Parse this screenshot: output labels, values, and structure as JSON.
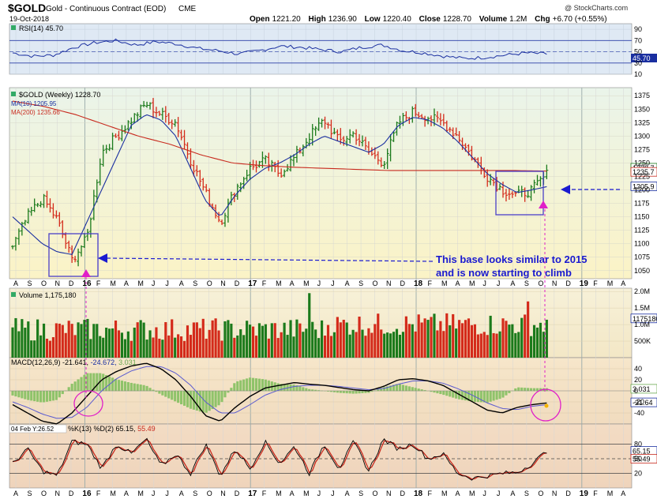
{
  "header": {
    "symbol": "$GOLD",
    "name": "Gold - Continuous Contract (EOD)",
    "exchange": "CME",
    "date": "19-Oct-2018",
    "watermark": "@ StockCharts.com",
    "open_label": "Open",
    "open": "1221.20",
    "high_label": "High",
    "high": "1236.90",
    "low_label": "Low",
    "low": "1220.40",
    "close_label": "Close",
    "close": "1228.70",
    "volume_label": "Volume",
    "volume": "1.2M",
    "chg_label": "Chg",
    "chg": "+6.70 (+0.55%)"
  },
  "colors": {
    "background": "#ffffff",
    "rsi_bg": "#dfe9f4",
    "price_bg_top": "#eaf4ea",
    "price_bg_bottom": "#fbf3c6",
    "vol_bg": "#f6eccd",
    "macd_bg": "#f5e2c7",
    "sto_bg": "#f3dcc4",
    "up": "#1b7a1b",
    "down": "#d42a1a",
    "ma10": "#1a2fa0",
    "ma200": "#c82a1e",
    "annotation_blue": "#1a1ad0",
    "annotation_magenta": "#e020c8",
    "macd_hist": "#8fc36a"
  },
  "chart_data": [
    {
      "type": "line",
      "panel": "rsi",
      "title": "RSI(14) 45.70",
      "series": [
        {
          "name": "RSI(14)",
          "values": [
            48,
            42,
            44,
            58,
            66,
            70,
            62,
            68,
            64,
            56,
            52,
            46,
            52,
            60,
            58,
            54,
            50,
            58,
            62,
            52,
            48,
            42,
            38,
            40,
            44,
            48,
            46
          ]
        }
      ],
      "ylim": [
        10,
        100
      ],
      "ticks": [
        "90",
        "70",
        "50",
        "30",
        "10"
      ],
      "guide_levels": [
        70,
        30
      ],
      "last_label": "45.70"
    },
    {
      "type": "candlestick",
      "panel": "price",
      "title": "$GOLD (Weekly) 1228.70",
      "legend": [
        {
          "name": "MA(10) 1205.95",
          "color": "#1a2fa0"
        },
        {
          "name": "MA(200) 1235.66",
          "color": "#c82a1e"
        }
      ],
      "close_path": [
        1095,
        1150,
        1185,
        1145,
        1070,
        1110,
        1270,
        1300,
        1330,
        1360,
        1340,
        1325,
        1255,
        1195,
        1140,
        1200,
        1240,
        1255,
        1230,
        1260,
        1300,
        1330,
        1290,
        1305,
        1270,
        1250,
        1325,
        1345,
        1335,
        1325,
        1300,
        1260,
        1225,
        1200,
        1190,
        1200,
        1229
      ],
      "ma10_path": [
        1150,
        1125,
        1100,
        1085,
        1080,
        1140,
        1200,
        1260,
        1320,
        1340,
        1330,
        1300,
        1240,
        1180,
        1150,
        1190,
        1220,
        1240,
        1250,
        1265,
        1285,
        1300,
        1290,
        1280,
        1270,
        1285,
        1320,
        1335,
        1330,
        1315,
        1290,
        1260,
        1230,
        1210,
        1195,
        1200,
        1206
      ],
      "ma200_path": [
        1365,
        1355,
        1340,
        1320,
        1300,
        1285,
        1265,
        1250,
        1245,
        1242,
        1240,
        1238,
        1236,
        1236,
        1236,
        1236,
        1236,
        1235
      ],
      "ylim": [
        1035,
        1390
      ],
      "ticks": [
        "1375",
        "1350",
        "1325",
        "1300",
        "1275",
        "1250",
        "1225",
        "1200",
        "1175",
        "1150",
        "1125",
        "1100",
        "1075",
        "1050"
      ],
      "last_labels": [
        "1228.7",
        "1235.7",
        "1205.9"
      ],
      "annotation": "This base looks similar to 2015 and is now starting to climb",
      "annotation_lines": [
        "This base looks similar to 2015",
        "and is now starting to climb"
      ]
    },
    {
      "type": "bar",
      "panel": "volume",
      "title": "Volume 1,175,180",
      "ticks": [
        "2.0M",
        "1.5M",
        "1.0M",
        "500K"
      ],
      "ylim": [
        0,
        2100000
      ],
      "last_label": "1175180"
    },
    {
      "type": "line",
      "panel": "macd",
      "title": "MACD(12,26,9) -21.641, -24.672, 3.031",
      "title_parts": [
        "MACD(12,26,9) -21.641,",
        "-24.672,",
        "3.031"
      ],
      "series": [
        {
          "name": "MACD",
          "values": [
            -25,
            -40,
            -55,
            -60,
            -40,
            -10,
            20,
            35,
            45,
            50,
            40,
            20,
            -10,
            -45,
            -55,
            -30,
            -10,
            5,
            10,
            15,
            12,
            10,
            6,
            2,
            0,
            8,
            20,
            22,
            18,
            10,
            -5,
            -20,
            -35,
            -40,
            -30,
            -25,
            -22
          ]
        },
        {
          "name": "Signal",
          "values": [
            -20,
            -30,
            -42,
            -50,
            -48,
            -30,
            0,
            22,
            36,
            44,
            44,
            32,
            10,
            -20,
            -40,
            -40,
            -25,
            -8,
            2,
            8,
            10,
            10,
            8,
            5,
            2,
            4,
            12,
            18,
            18,
            14,
            4,
            -8,
            -22,
            -32,
            -34,
            -28,
            -25
          ]
        }
      ],
      "ylim": [
        -60,
        60
      ],
      "ticks": [
        "40",
        "20",
        "0",
        "-20",
        "-40"
      ],
      "last_labels": [
        "3.031",
        "-21.64"
      ]
    },
    {
      "type": "line",
      "panel": "stochastic",
      "title": "%K(13) %D(2) 65.15, 55.49",
      "title_prefix": "04 Feb Y:26.52",
      "title_parts": [
        "%K(13) %D(2) 65.15,",
        "55.49"
      ],
      "series": [
        {
          "name": "%K",
          "values": [
            40,
            70,
            25,
            15,
            85,
            80,
            30,
            80,
            60,
            90,
            35,
            60,
            20,
            80,
            15,
            70,
            30,
            85,
            40,
            75,
            20,
            80,
            30,
            85,
            25,
            90,
            70,
            80,
            50,
            60,
            20,
            10,
            15,
            20,
            22,
            40,
            65
          ]
        }
      ],
      "ylim": [
        0,
        100
      ],
      "ticks": [
        "80",
        "50",
        "20"
      ],
      "guide_levels": [
        80,
        50,
        20
      ],
      "last_labels": [
        "65.15",
        "55.49"
      ]
    }
  ],
  "x_axis": {
    "labels": [
      "A",
      "S",
      "O",
      "N",
      "D",
      "16",
      "F",
      "M",
      "A",
      "M",
      "J",
      "J",
      "A",
      "S",
      "O",
      "N",
      "D",
      "17",
      "F",
      "M",
      "A",
      "M",
      "J",
      "J",
      "A",
      "S",
      "O",
      "N",
      "D",
      "18",
      "F",
      "M",
      "A",
      "M",
      "J",
      "J",
      "A",
      "S",
      "O",
      "N",
      "D",
      "19",
      "F",
      "M",
      "A"
    ]
  }
}
